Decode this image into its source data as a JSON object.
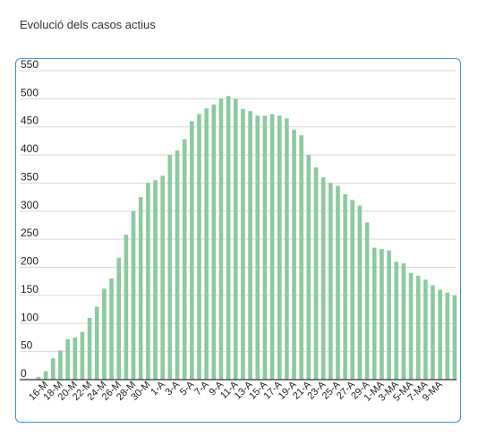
{
  "page": {
    "title": "Evolució dels casos actius"
  },
  "chart_data": {
    "type": "bar",
    "title": "Evolució dels casos actius",
    "xlabel": "",
    "ylabel": "",
    "ylim": [
      0,
      550
    ],
    "yticks": [
      0,
      50,
      100,
      150,
      200,
      250,
      300,
      350,
      400,
      450,
      500,
      550
    ],
    "grid": true,
    "legend": "none",
    "bar_color": "#8ccaa0",
    "categories": [
      "15-M",
      "16-M",
      "17-M",
      "18-M",
      "19-M",
      "20-M",
      "21-M",
      "22-M",
      "23-M",
      "24-M",
      "25-M",
      "26-M",
      "27-M",
      "28-M",
      "29-M",
      "30-M",
      "31-M",
      "1-A",
      "2-A",
      "3-A",
      "4-A",
      "5-A",
      "6-A",
      "7-A",
      "8-A",
      "9-A",
      "10-A",
      "11-A",
      "12-A",
      "13-A",
      "14-A",
      "15-A",
      "16-A",
      "17-A",
      "18-A",
      "19-A",
      "20-A",
      "21-A",
      "22-A",
      "23-A",
      "24-A",
      "25-A",
      "26-A",
      "27-A",
      "28-A",
      "29-A",
      "30-A",
      "1-MA",
      "2-MA",
      "3-MA",
      "4-MA",
      "5-MA",
      "6-MA",
      "7-MA",
      "8-MA",
      "9-MA",
      "10-MA",
      "11-MA"
    ],
    "x_tick_labels": [
      "16-M",
      "18-M",
      "20-M",
      "22-M",
      "24-M",
      "26-M",
      "28-M",
      "30-M",
      "1-A",
      "3-A",
      "5-A",
      "7-A",
      "9-A",
      "11-A",
      "13-A",
      "15-A",
      "17-A",
      "19-A",
      "21-A",
      "23-A",
      "25-A",
      "27-A",
      "29-A",
      "1-MA",
      "3-MA",
      "5-MA",
      "7-MA",
      "9-MA"
    ],
    "values": [
      5,
      15,
      38,
      52,
      72,
      75,
      85,
      110,
      130,
      162,
      180,
      217,
      258,
      300,
      325,
      350,
      355,
      363,
      400,
      408,
      428,
      460,
      473,
      483,
      490,
      500,
      505,
      500,
      482,
      478,
      470,
      470,
      473,
      470,
      465,
      445,
      435,
      400,
      378,
      360,
      350,
      345,
      330,
      320,
      310,
      280,
      235,
      233,
      230,
      210,
      207,
      190,
      185,
      178,
      168,
      160,
      155,
      150
    ]
  }
}
